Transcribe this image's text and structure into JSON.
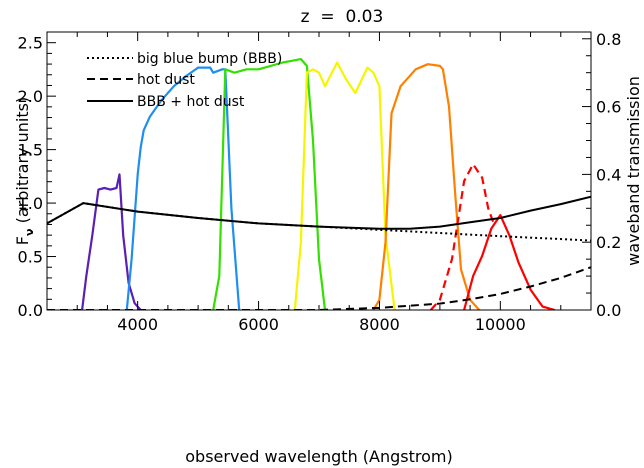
{
  "chart_data": {
    "type": "line",
    "title": "z  =  0.03",
    "xlabel": "observed wavelength (Angstrom)",
    "ylabel_left": "Fν (arbitrary units)",
    "ylabel_left_main": "F",
    "ylabel_left_sub": "ν",
    "ylabel_left_rest": " (arbitrary units)",
    "ylabel_right": "waveband transmission",
    "xlim": [
      2500,
      11500
    ],
    "ylim_left": [
      0,
      2.6
    ],
    "ylim_right": [
      0,
      0.82
    ],
    "x_ticks": [
      4000,
      6000,
      8000,
      10000
    ],
    "x_tick_labels": [
      "4000",
      "6000",
      "8000",
      "10000"
    ],
    "y_left_ticks": [
      0.0,
      0.5,
      1.0,
      1.5,
      2.0,
      2.5
    ],
    "y_left_tick_labels": [
      "0.0",
      "0.5",
      "1.0",
      "1.5",
      "2.0",
      "2.5"
    ],
    "y_right_ticks": [
      0.0,
      0.2,
      0.4,
      0.6,
      0.8
    ],
    "y_right_tick_labels": [
      "0.0",
      "0.2",
      "0.4",
      "0.6",
      "0.8"
    ],
    "grid": false,
    "legend_position": "top-left",
    "legend": [
      {
        "name": "big blue bump (BBB)",
        "style": "dotted"
      },
      {
        "name": "hot dust",
        "style": "dashed"
      },
      {
        "name": "BBB + hot dust",
        "style": "solid"
      }
    ],
    "series": [
      {
        "name": "big blue bump (BBB)",
        "axis": "left",
        "style": "dotted",
        "color": "#000000",
        "x": [
          2500,
          3100,
          4000,
          5000,
          6000,
          7000,
          8000,
          9000,
          10000,
          11500
        ],
        "y": [
          0.81,
          1.0,
          0.92,
          0.86,
          0.81,
          0.78,
          0.75,
          0.72,
          0.69,
          0.65
        ]
      },
      {
        "name": "hot dust",
        "axis": "left",
        "style": "dashed",
        "color": "#000000",
        "x": [
          2500,
          4000,
          5000,
          6000,
          7000,
          7500,
          8000,
          8500,
          9000,
          9500,
          10000,
          10500,
          11000,
          11500
        ],
        "y": [
          0.0,
          0.0,
          0.0,
          0.0,
          0.0,
          0.01,
          0.02,
          0.04,
          0.06,
          0.1,
          0.15,
          0.22,
          0.3,
          0.4
        ]
      },
      {
        "name": "BBB + hot dust",
        "axis": "left",
        "style": "solid",
        "color": "#000000",
        "x": [
          2500,
          3100,
          4000,
          5000,
          6000,
          7000,
          8000,
          8500,
          9000,
          9500,
          10000,
          10500,
          11000,
          11500
        ],
        "y": [
          0.81,
          1.0,
          0.92,
          0.86,
          0.81,
          0.78,
          0.76,
          0.76,
          0.78,
          0.82,
          0.86,
          0.93,
          0.99,
          1.06
        ]
      }
    ],
    "bands": [
      {
        "color": "#5a1fb4",
        "axis": "right",
        "style": "solid",
        "x": [
          3080,
          3150,
          3250,
          3350,
          3450,
          3550,
          3650,
          3700,
          3760,
          3850,
          3950,
          4050
        ],
        "y": [
          0.0,
          0.1,
          0.22,
          0.355,
          0.36,
          0.355,
          0.36,
          0.4,
          0.22,
          0.08,
          0.02,
          0.0
        ]
      },
      {
        "color": "#1e8ff0",
        "axis": "right",
        "style": "solid",
        "x": [
          3820,
          3900,
          4000,
          4050,
          4100,
          4200,
          4400,
          4600,
          4800,
          5000,
          5200,
          5250,
          5400,
          5450,
          5550,
          5680
        ],
        "y": [
          0.0,
          0.15,
          0.4,
          0.48,
          0.53,
          0.57,
          0.62,
          0.66,
          0.69,
          0.715,
          0.715,
          0.7,
          0.71,
          0.71,
          0.3,
          0.0
        ]
      },
      {
        "color": "#33e000",
        "axis": "right",
        "style": "solid",
        "x": [
          5250,
          5350,
          5450,
          5600,
          5800,
          6000,
          6200,
          6400,
          6550,
          6700,
          6800,
          6900,
          7000,
          7100
        ],
        "y": [
          0.0,
          0.1,
          0.71,
          0.7,
          0.71,
          0.71,
          0.72,
          0.73,
          0.735,
          0.74,
          0.72,
          0.5,
          0.15,
          0.0
        ]
      },
      {
        "color": "#f5f500",
        "axis": "right",
        "style": "solid",
        "x": [
          6600,
          6700,
          6800,
          6900,
          7000,
          7100,
          7300,
          7450,
          7600,
          7800,
          7900,
          8000,
          8100,
          8250
        ],
        "y": [
          0.0,
          0.2,
          0.7,
          0.71,
          0.7,
          0.66,
          0.73,
          0.68,
          0.64,
          0.715,
          0.7,
          0.66,
          0.22,
          0.0
        ]
      },
      {
        "color": "#ff8000",
        "axis": "right",
        "style": "solid",
        "x": [
          7900,
          8000,
          8100,
          8200,
          8350,
          8600,
          8800,
          9000,
          9050,
          9150,
          9250,
          9350,
          9500,
          9650
        ],
        "y": [
          0.0,
          0.03,
          0.2,
          0.58,
          0.66,
          0.71,
          0.725,
          0.72,
          0.71,
          0.6,
          0.35,
          0.12,
          0.03,
          0.0
        ]
      },
      {
        "color": "#ff0000",
        "axis": "right",
        "style": "dashed",
        "x": [
          8850,
          9000,
          9200,
          9400,
          9550,
          9700,
          9800,
          9900
        ],
        "y": [
          0.0,
          0.03,
          0.15,
          0.38,
          0.43,
          0.39,
          0.3,
          0.25
        ]
      },
      {
        "color": "#ff0000",
        "axis": "right",
        "style": "solid",
        "x": [
          9400,
          9550,
          9700,
          9850,
          10000,
          10150,
          10300,
          10500,
          10700,
          10900
        ],
        "y": [
          0.0,
          0.1,
          0.16,
          0.24,
          0.28,
          0.22,
          0.14,
          0.06,
          0.01,
          0.0
        ]
      }
    ]
  }
}
